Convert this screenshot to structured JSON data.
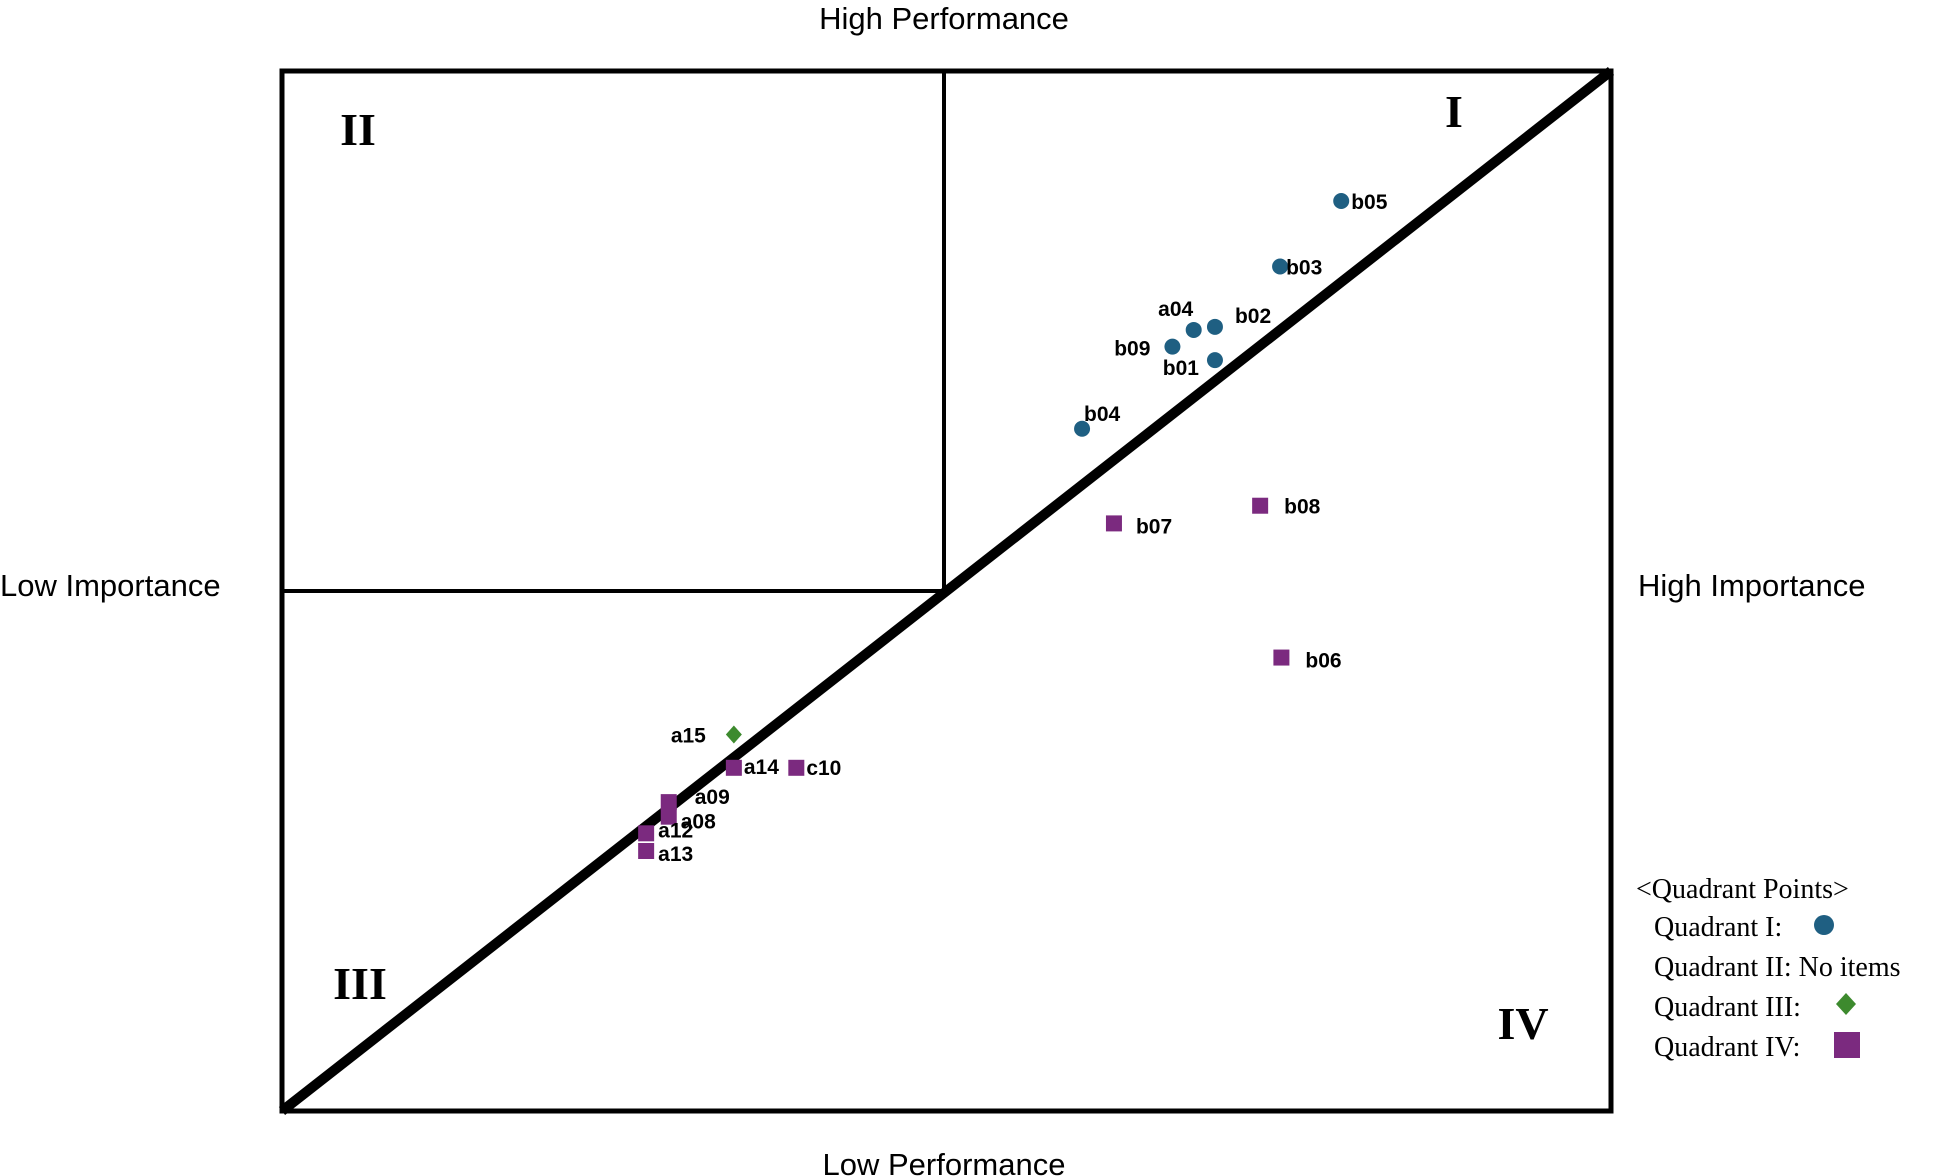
{
  "chart_data": {
    "type": "scatter",
    "axis_labels": {
      "top": "High Performance",
      "bottom": "Low Performance",
      "left": "Low Importance",
      "right": "High Importance"
    },
    "quadrant_labels": [
      "I",
      "II",
      "III",
      "IV"
    ],
    "xlim": [
      0,
      100
    ],
    "ylim": [
      0,
      100
    ],
    "grid": false,
    "series": [
      {
        "name": "Quadrant I",
        "marker": "circle",
        "color": "#1f5f82",
        "points": [
          {
            "label": "b05",
            "x": 79.7,
            "y": 87.5
          },
          {
            "label": "b03",
            "x": 75.1,
            "y": 81.2
          },
          {
            "label": "a04",
            "x": 68.6,
            "y": 75.1
          },
          {
            "label": "b02",
            "x": 70.2,
            "y": 75.4
          },
          {
            "label": "b09",
            "x": 67.0,
            "y": 73.5
          },
          {
            "label": "b01",
            "x": 70.2,
            "y": 72.2
          },
          {
            "label": "b04",
            "x": 60.2,
            "y": 65.6
          }
        ]
      },
      {
        "name": "Quadrant II",
        "marker": "none",
        "color": "#000000",
        "points": []
      },
      {
        "name": "Quadrant III",
        "marker": "diamond",
        "color": "#3d8a2e",
        "points": [
          {
            "label": "a15",
            "x": 34.0,
            "y": 36.2
          }
        ]
      },
      {
        "name": "Quadrant IV",
        "marker": "square",
        "color": "#7b2a7f",
        "points": [
          {
            "label": "b08",
            "x": 73.6,
            "y": 58.2
          },
          {
            "label": "b07",
            "x": 62.6,
            "y": 56.5
          },
          {
            "label": "b06",
            "x": 75.2,
            "y": 43.6
          },
          {
            "label": "a14",
            "x": 34.0,
            "y": 33.0
          },
          {
            "label": "c10",
            "x": 38.7,
            "y": 33.0
          },
          {
            "label": "a09",
            "x": 29.1,
            "y": 29.7
          },
          {
            "label": "a08",
            "x": 29.1,
            "y": 28.3
          },
          {
            "label": "a12",
            "x": 27.4,
            "y": 26.7
          },
          {
            "label": "a13",
            "x": 27.4,
            "y": 25.0
          }
        ]
      }
    ]
  },
  "legend": {
    "title": "<Quadrant Points>",
    "entries": [
      {
        "label": "Quadrant I:",
        "marker": "circle",
        "color": "#1f5f82"
      },
      {
        "label": "Quadrant II: No items",
        "marker": "none",
        "color": ""
      },
      {
        "label": "Quadrant III:",
        "marker": "diamond",
        "color": "#3d8a2e"
      },
      {
        "label": "Quadrant IV:",
        "marker": "square",
        "color": "#7b2a7f"
      }
    ]
  }
}
